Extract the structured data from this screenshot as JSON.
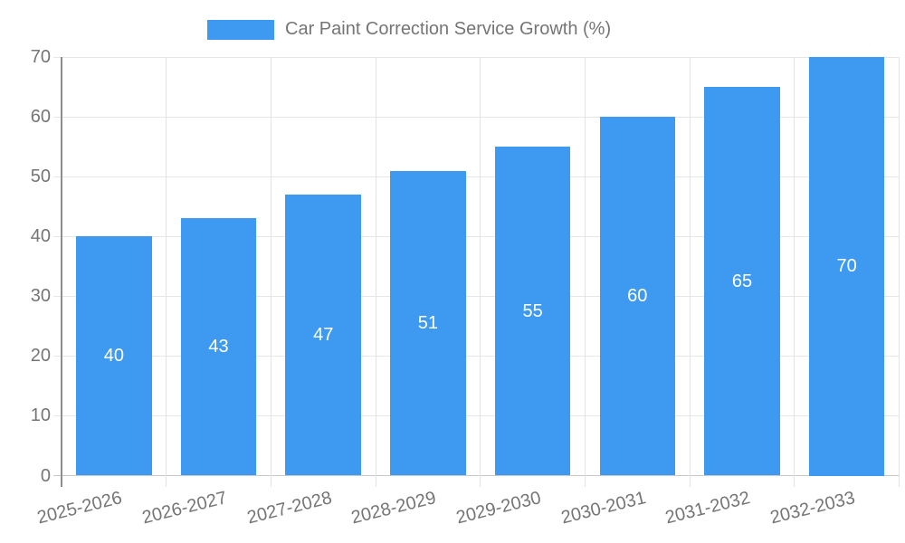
{
  "chart_data": {
    "type": "bar",
    "title": "Car Paint Correction Service Growth (%)",
    "categories": [
      "2025-2026",
      "2026-2027",
      "2027-2028",
      "2028-2029",
      "2029-2030",
      "2030-2031",
      "2031-2032",
      "2032-2033"
    ],
    "values": [
      40,
      43,
      47,
      51,
      55,
      60,
      65,
      70
    ],
    "xlabel": "",
    "ylabel": "",
    "ylim": [
      0,
      70
    ],
    "ytick_step": 10,
    "yticks": [
      0,
      10,
      20,
      30,
      40,
      50,
      60,
      70
    ],
    "grid": true,
    "legend_position": "top-center",
    "value_labels": "inside-center",
    "colors": {
      "bar": "#3D9AF0",
      "axis_text": "#757575",
      "value_text": "#ffffff",
      "gridline": "#e6e6e6",
      "vertical_gridline": "#e3e3e3",
      "zero_line": "#c8c8c8",
      "axis_line": "#8d8d8d"
    }
  }
}
